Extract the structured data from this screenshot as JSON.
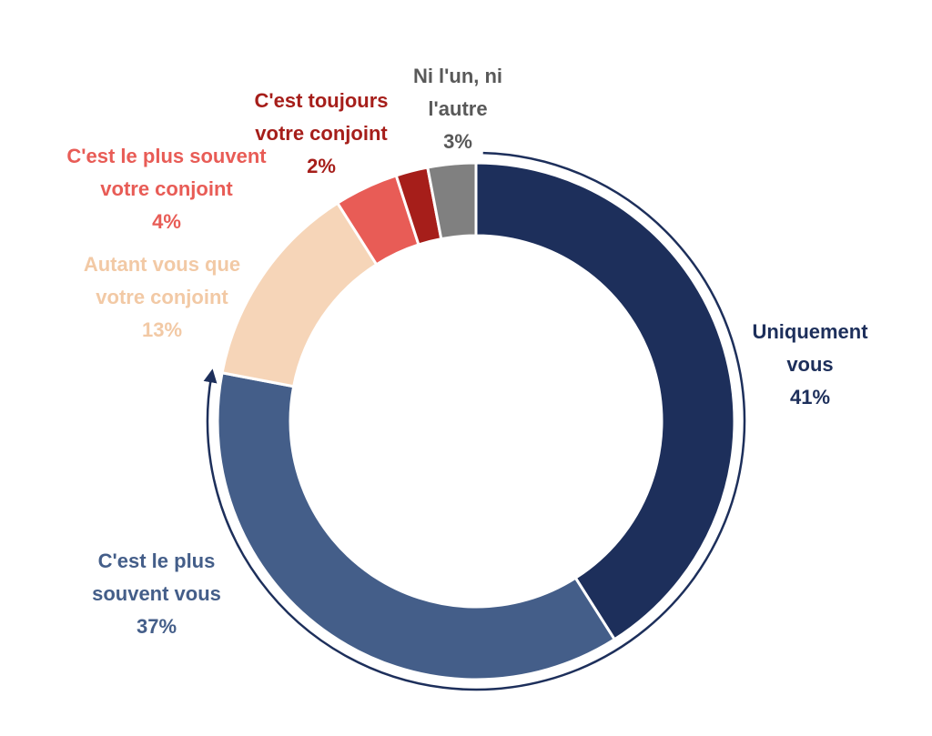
{
  "chart_data": {
    "type": "pie",
    "donut": true,
    "categories": [
      "Uniquement vous",
      "C'est le plus souvent vous",
      "Autant vous que votre conjoint",
      "C'est le plus souvent votre conjoint",
      "C'est toujours votre conjoint",
      "Ni l'un, ni l'autre"
    ],
    "values": [
      41,
      37,
      13,
      4,
      2,
      3
    ],
    "value_labels": [
      "41%",
      "37%",
      "13%",
      "4%",
      "2%",
      "3%"
    ],
    "colors": [
      "#1d2f5b",
      "#445e89",
      "#f6d5b8",
      "#e85c56",
      "#a61e1a",
      "#808080"
    ],
    "label_colors": [
      "#1d2f5b",
      "#445e89",
      "#f2c9a5",
      "#e85c56",
      "#a61e1a",
      "#595959"
    ],
    "label_lines": [
      [
        "Uniquement",
        "vous",
        "41%"
      ],
      [
        "C'est le plus",
        "souvent vous",
        "37%"
      ],
      [
        "Autant vous que",
        "votre conjoint",
        "13%"
      ],
      [
        "C'est le plus souvent",
        "votre conjoint",
        "4%"
      ],
      [
        "C'est toujours",
        "votre conjoint",
        "2%"
      ],
      [
        "Ni l'un, ni",
        "l'autre",
        "3%"
      ]
    ],
    "start_angle": "12 o'clock",
    "direction": "clockwise",
    "bracket_arc": "spans the first two slices (Uniquement vous + C'est le plus souvent vous)",
    "legend": "none"
  }
}
